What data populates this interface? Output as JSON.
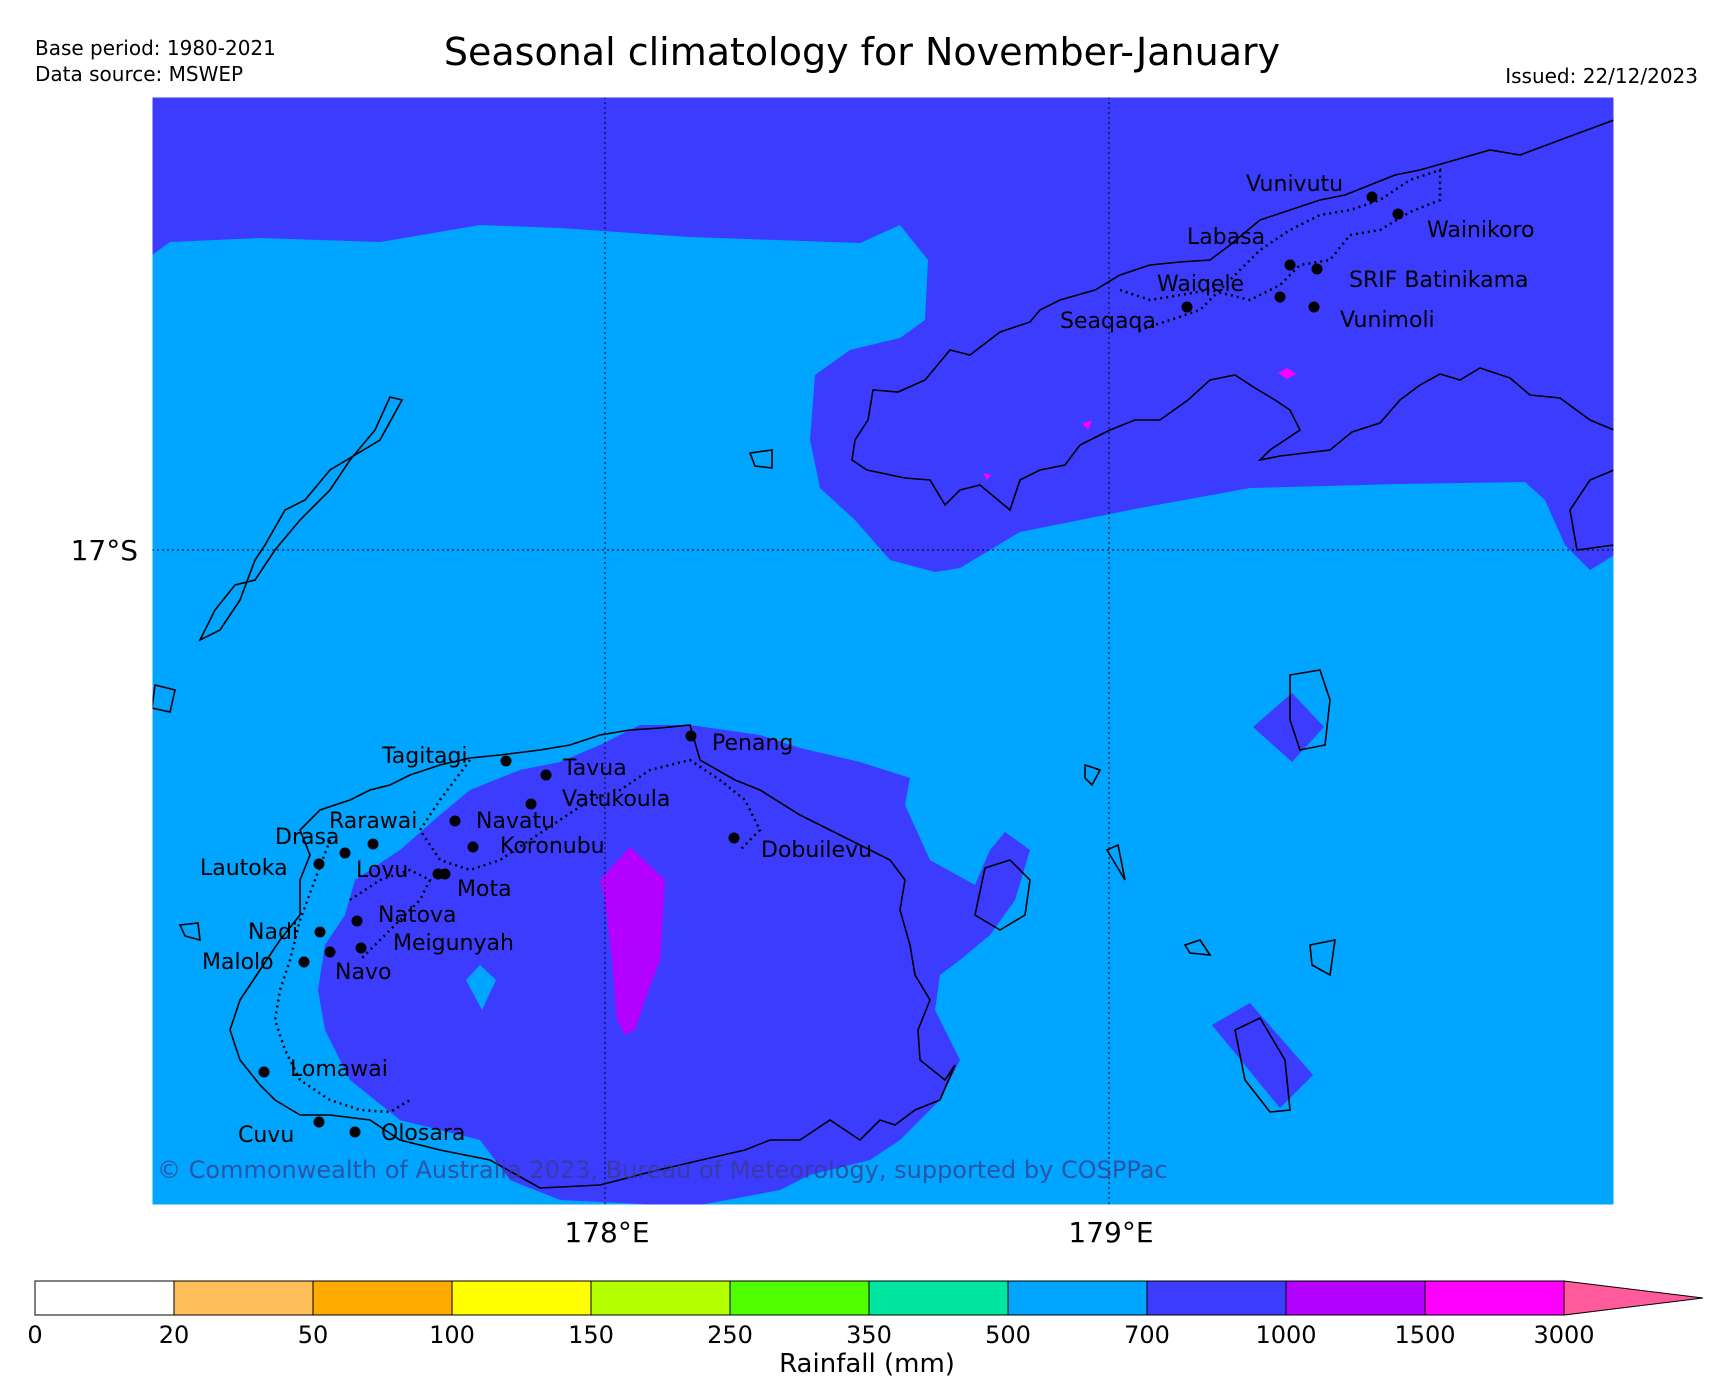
{
  "header": {
    "title": "Seasonal climatology for November-January",
    "base_period": "Base period: 1980-2021",
    "data_source": "Data source: MSWEP",
    "issued": "Issued: 22/12/2023"
  },
  "map": {
    "lat_label": "17°S",
    "lon_labels": [
      "178°E",
      "179°E"
    ],
    "copyright": "© Commonwealth of Australia 2023, Bureau of Meteorology, supported by COSPPac",
    "colors": {
      "r500_700": "#00a5ff",
      "r700_1000": "#3c3cff",
      "r1000_1500": "#b400ff",
      "r1500_3000": "#ff00ff"
    },
    "places": [
      {
        "name": "Vunivutu"
      },
      {
        "name": "Wainikoro"
      },
      {
        "name": "Labasa"
      },
      {
        "name": "SRIF Batinikama"
      },
      {
        "name": "Waiqele"
      },
      {
        "name": "Seaqaqa"
      },
      {
        "name": "Vunimoli"
      },
      {
        "name": "Penang"
      },
      {
        "name": "Tagitagi"
      },
      {
        "name": "Tavua"
      },
      {
        "name": "Vatukoula"
      },
      {
        "name": "Rarawai"
      },
      {
        "name": "Navatu"
      },
      {
        "name": "Drasa"
      },
      {
        "name": "Koronubu"
      },
      {
        "name": "Dobuilevu"
      },
      {
        "name": "Lautoka"
      },
      {
        "name": "Lovu"
      },
      {
        "name": "Mota"
      },
      {
        "name": "Natova"
      },
      {
        "name": "Nadi"
      },
      {
        "name": "Meigunyah"
      },
      {
        "name": "Malolo"
      },
      {
        "name": "Navo"
      },
      {
        "name": "Lomawai"
      },
      {
        "name": "Cuvu"
      },
      {
        "name": "Olosara"
      }
    ]
  },
  "colorbar": {
    "label": "Rainfall (mm)",
    "ticks": [
      "0",
      "20",
      "50",
      "100",
      "150",
      "250",
      "350",
      "500",
      "700",
      "1000",
      "1500",
      "3000"
    ],
    "colors": [
      "#ffffff",
      "#ffbe5a",
      "#ffaa00",
      "#ffff00",
      "#b4ff00",
      "#50ff00",
      "#00e6a0",
      "#00a5ff",
      "#3c3cff",
      "#b400ff",
      "#ff00ff",
      "#ff5a9b"
    ]
  }
}
